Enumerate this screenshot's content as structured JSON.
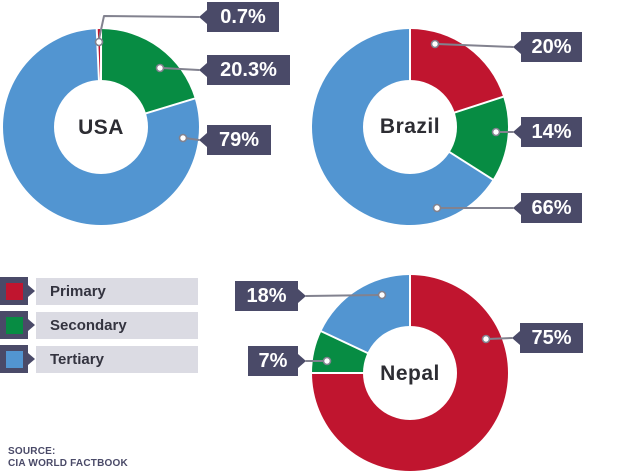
{
  "colors": {
    "primary": "#c0152f",
    "secondary": "#078c43",
    "tertiary": "#5295d1",
    "callout_box": "#4a4a68",
    "callout_text": "#ffffff",
    "connector_line": "#82828f",
    "connector_dot_fill": "#ffffff",
    "legend_bar_bg": "#dbdbe3",
    "legend_text": "#33333f",
    "source_text": "#4a4a68",
    "country_text": "#2d2d33",
    "background": "#ffffff"
  },
  "legend": {
    "items": [
      {
        "label": "Primary",
        "swatch_icon": "red-square-icon",
        "color": "#c0152f"
      },
      {
        "label": "Secondary",
        "swatch_icon": "green-square-icon",
        "color": "#078c43"
      },
      {
        "label": "Tertiary",
        "swatch_icon": "blue-square-icon",
        "color": "#5295d1"
      }
    ]
  },
  "source": {
    "line1": "SOURCE:",
    "line2": "CIA WORLD FACTBOOK"
  },
  "chart_data": [
    {
      "type": "pie",
      "subtype": "donut",
      "title": "USA",
      "center_label": "USA",
      "categories": [
        "Primary",
        "Secondary",
        "Tertiary"
      ],
      "values": [
        0.7,
        20.3,
        79
      ],
      "labels": [
        "0.7%",
        "20.3%",
        "79%"
      ],
      "colors": [
        "#c0152f",
        "#078c43",
        "#5295d1"
      ],
      "start_deg": -2.5,
      "direction": "clockwise"
    },
    {
      "type": "pie",
      "subtype": "donut",
      "title": "Brazil",
      "center_label": "Brazil",
      "categories": [
        "Primary",
        "Secondary",
        "Tertiary"
      ],
      "values": [
        20,
        14,
        66
      ],
      "labels": [
        "20%",
        "14%",
        "66%"
      ],
      "colors": [
        "#c0152f",
        "#078c43",
        "#5295d1"
      ],
      "start_deg": 0,
      "direction": "clockwise"
    },
    {
      "type": "pie",
      "subtype": "donut",
      "title": "Nepal",
      "center_label": "Nepal",
      "categories": [
        "Primary",
        "Secondary",
        "Tertiary"
      ],
      "values": [
        75,
        7,
        18
      ],
      "labels": [
        "75%",
        "7%",
        "18%"
      ],
      "colors": [
        "#c0152f",
        "#078c43",
        "#5295d1"
      ],
      "start_deg": 0,
      "direction": "clockwise"
    }
  ]
}
